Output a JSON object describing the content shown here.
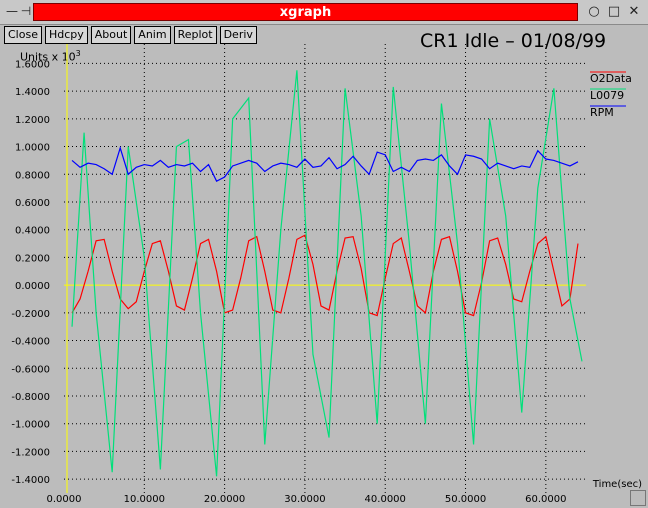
{
  "window": {
    "title": "xgraph",
    "minimize_icon": "minus-icon",
    "pin_icon": "pin-icon",
    "close_icon": "close-icon",
    "maximize_icon": "maximize-icon"
  },
  "toolbar": {
    "buttons": [
      "Close",
      "Hdcpy",
      "About",
      "Anim",
      "Replot",
      "Deriv"
    ]
  },
  "plot": {
    "title": "CR1 Idle – 01/08/99",
    "units_label": "Units x 10",
    "units_exp": "3",
    "xlabel": "Time(sec)"
  },
  "colors": {
    "background": "#bcbcbc",
    "axis": "#ffff00",
    "grid": "#000000",
    "O2Data": "#ff0000",
    "L0079": "#00e07a",
    "RPM": "#0000ff"
  },
  "chart_data": {
    "type": "line",
    "title": "CR1 Idle – 01/08/99",
    "xlabel": "Time(sec)",
    "ylabel": "Units x 10^3",
    "xlim": [
      0,
      65
    ],
    "ylim": [
      -1.5,
      1.75
    ],
    "x_ticks": [
      "0.0000",
      "10.0000",
      "20.0000",
      "30.0000",
      "40.0000",
      "50.0000",
      "60.0000"
    ],
    "y_ticks": [
      "1.6000",
      "1.4000",
      "1.2000",
      "1.0000",
      "0.8000",
      "0.6000",
      "0.4000",
      "0.2000",
      "0.0000",
      "-0.2000",
      "-0.4000",
      "-0.6000",
      "-0.8000",
      "-1.0000",
      "-1.2000",
      "-1.4000"
    ],
    "grid": true,
    "legend_placement": "top-right",
    "series": [
      {
        "name": "O2Data",
        "x": [
          1,
          2,
          3,
          4,
          5,
          6,
          7,
          8,
          9,
          10,
          11,
          12,
          13,
          14,
          15,
          16,
          17,
          18,
          19,
          20,
          21,
          22,
          23,
          24,
          25,
          26,
          27,
          28,
          29,
          30,
          31,
          32,
          33,
          34,
          35,
          36,
          37,
          38,
          39,
          40,
          41,
          42,
          43,
          44,
          45,
          46,
          47,
          48,
          49,
          50,
          51,
          52,
          53,
          54,
          55,
          56,
          57,
          58,
          59,
          60,
          61,
          62,
          63,
          64
        ],
        "y": [
          -0.2,
          -0.1,
          0.1,
          0.32,
          0.33,
          0.1,
          -0.1,
          -0.17,
          -0.12,
          0.1,
          0.3,
          0.32,
          0.1,
          -0.15,
          -0.18,
          0.05,
          0.3,
          0.33,
          0.1,
          -0.2,
          -0.18,
          0.05,
          0.32,
          0.35,
          0.1,
          -0.18,
          -0.2,
          0.05,
          0.33,
          0.36,
          0.15,
          -0.15,
          -0.18,
          0.1,
          0.34,
          0.35,
          0.12,
          -0.2,
          -0.22,
          0.05,
          0.3,
          0.34,
          0.1,
          -0.15,
          -0.2,
          0.1,
          0.33,
          0.35,
          0.1,
          -0.2,
          -0.22,
          0.02,
          0.32,
          0.34,
          0.15,
          -0.1,
          -0.12,
          0.1,
          0.3,
          0.35,
          0.1,
          -0.15,
          -0.1,
          0.3
        ]
      },
      {
        "name": "L0079",
        "x": [
          1,
          2.5,
          4,
          6,
          8,
          10,
          12,
          14,
          15.5,
          17,
          19,
          21,
          23,
          25,
          27,
          29,
          31,
          33,
          35,
          37,
          39,
          41,
          43,
          45,
          47,
          49,
          51,
          53,
          55,
          57,
          59,
          61,
          63,
          64.5
        ],
        "y": [
          -0.3,
          1.1,
          -0.2,
          -1.35,
          1.0,
          0.2,
          -1.33,
          1.0,
          1.05,
          -0.2,
          -1.38,
          1.2,
          1.35,
          -1.15,
          0.4,
          1.55,
          -0.5,
          -1.1,
          1.42,
          0.5,
          -1.0,
          1.43,
          0.3,
          -1.0,
          1.31,
          0.3,
          -1.15,
          1.2,
          0.5,
          -0.92,
          0.7,
          1.42,
          -0.1,
          -0.55
        ]
      },
      {
        "name": "RPM",
        "x": [
          1,
          2,
          3,
          4,
          5,
          6,
          7,
          8,
          9,
          10,
          11,
          12,
          13,
          14,
          15,
          16,
          17,
          18,
          19,
          20,
          21,
          22,
          23,
          24,
          25,
          26,
          27,
          28,
          29,
          30,
          31,
          32,
          33,
          34,
          35,
          36,
          37,
          38,
          39,
          40,
          41,
          42,
          43,
          44,
          45,
          46,
          47,
          48,
          49,
          50,
          51,
          52,
          53,
          54,
          55,
          56,
          57,
          58,
          59,
          60,
          61,
          62,
          63,
          64
        ],
        "y": [
          0.9,
          0.85,
          0.88,
          0.87,
          0.84,
          0.8,
          0.99,
          0.8,
          0.85,
          0.87,
          0.86,
          0.9,
          0.85,
          0.87,
          0.86,
          0.88,
          0.82,
          0.87,
          0.75,
          0.78,
          0.86,
          0.88,
          0.9,
          0.88,
          0.82,
          0.86,
          0.88,
          0.87,
          0.85,
          0.91,
          0.85,
          0.86,
          0.92,
          0.84,
          0.87,
          0.93,
          0.86,
          0.8,
          0.96,
          0.94,
          0.82,
          0.85,
          0.82,
          0.9,
          0.91,
          0.9,
          0.94,
          0.86,
          0.8,
          0.94,
          0.93,
          0.91,
          0.84,
          0.88,
          0.86,
          0.84,
          0.86,
          0.85,
          0.97,
          0.91,
          0.9,
          0.88,
          0.86,
          0.89
        ]
      }
    ]
  }
}
